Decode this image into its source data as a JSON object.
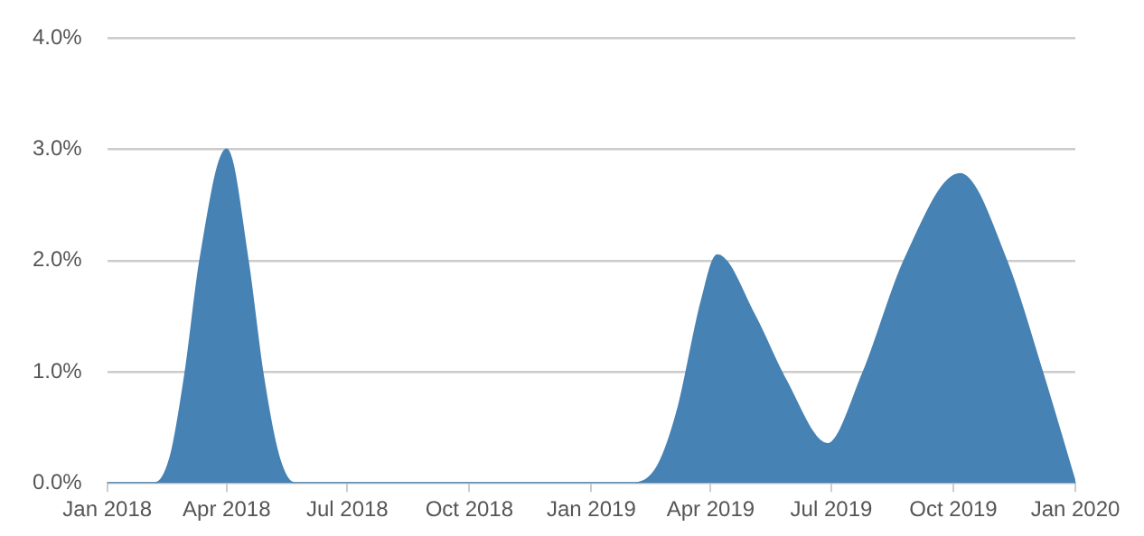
{
  "chart_data": {
    "type": "area",
    "grid": "y",
    "legend": false,
    "marker": "none",
    "xlim": [
      "2018-01-01",
      "2020-01-01"
    ],
    "xticks": [
      {
        "value": "2018-01-01",
        "label": "Jan 2018"
      },
      {
        "value": "2018-04-01",
        "label": "Apr 2018"
      },
      {
        "value": "2018-07-01",
        "label": "Jul 2018"
      },
      {
        "value": "2018-10-01",
        "label": "Oct 2018"
      },
      {
        "value": "2019-01-01",
        "label": "Jan 2019"
      },
      {
        "value": "2019-04-01",
        "label": "Apr 2019"
      },
      {
        "value": "2019-07-01",
        "label": "Jul 2019"
      },
      {
        "value": "2019-10-01",
        "label": "Oct 2019"
      },
      {
        "value": "2020-01-01",
        "label": "Jan 2020"
      }
    ],
    "ylim": [
      0,
      4
    ],
    "yticks": [
      {
        "value": 0,
        "label": "0.0%"
      },
      {
        "value": 1,
        "label": "1.0%"
      },
      {
        "value": 2,
        "label": "2.0%"
      },
      {
        "value": 3,
        "label": "3.0%"
      },
      {
        "value": 4,
        "label": "4.0%"
      }
    ],
    "series": [
      {
        "color": "#4682b4",
        "x": [
          "2018-01-01",
          "2018-02-06",
          "2018-02-18",
          "2018-03-01",
          "2018-03-12",
          "2018-04-01",
          "2018-04-17",
          "2018-04-28",
          "2018-05-10",
          "2018-05-22",
          "2019-02-03",
          "2019-02-20",
          "2019-03-07",
          "2019-03-25",
          "2019-04-06",
          "2019-05-04",
          "2019-05-27",
          "2019-06-28",
          "2019-07-25",
          "2019-08-25",
          "2019-10-06",
          "2019-11-10",
          "2019-12-07",
          "2020-01-01"
        ],
        "values": [
          0,
          0,
          0.25,
          1.0,
          2.0,
          3.0,
          2.0,
          1.0,
          0.25,
          0,
          0,
          0.15,
          0.65,
          1.63,
          2.05,
          1.51,
          0.94,
          0.35,
          0.99,
          2.0,
          2.78,
          2.0,
          1.0,
          0
        ]
      }
    ]
  }
}
